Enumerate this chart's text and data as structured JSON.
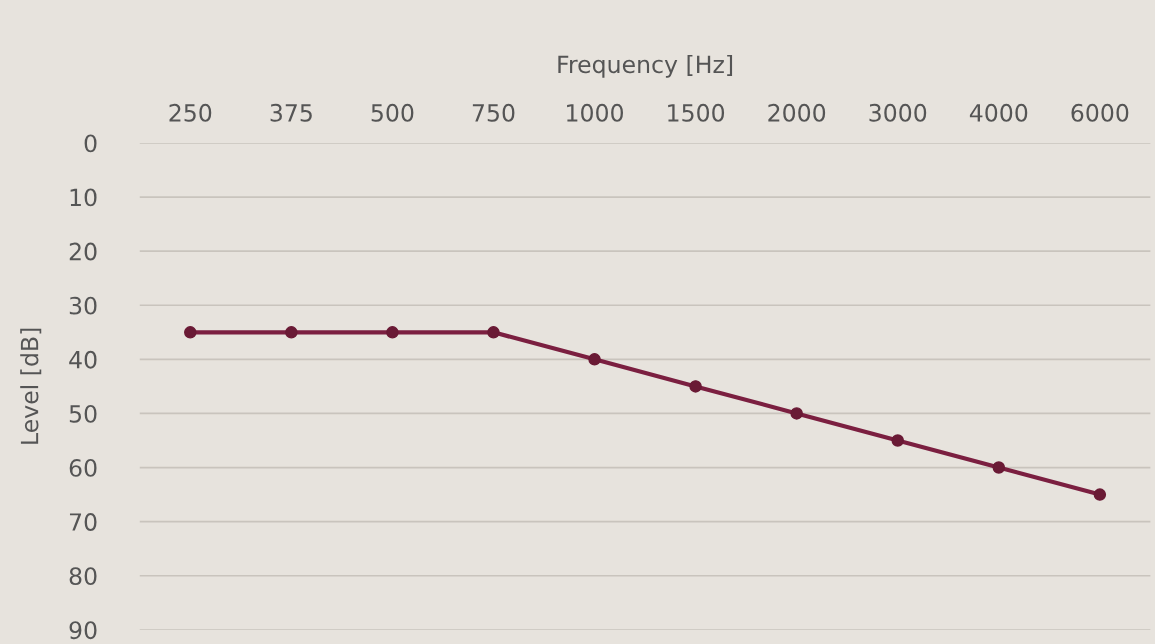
{
  "chart_data": {
    "type": "line",
    "xlabel": "Frequency [Hz]",
    "ylabel": "Level [dB]",
    "categories": [
      "250",
      "375",
      "500",
      "750",
      "1000",
      "1500",
      "2000",
      "3000",
      "4000",
      "6000"
    ],
    "series": [
      {
        "color": "#7b1f40",
        "values": [
          35,
          35,
          35,
          35,
          40,
          45,
          50,
          55,
          60,
          65
        ]
      }
    ],
    "ylim": [
      90,
      0
    ],
    "yticks": [
      0,
      10,
      20,
      30,
      40,
      50,
      60,
      70,
      80,
      90
    ],
    "grid": "y",
    "marker": "circle",
    "line_style": "solid"
  }
}
